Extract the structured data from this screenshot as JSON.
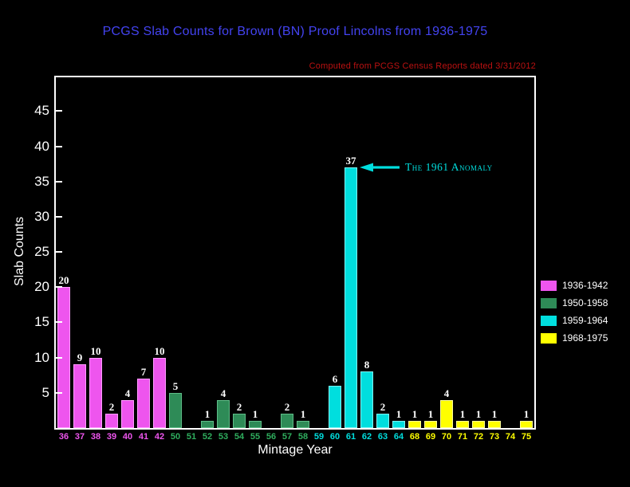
{
  "title": "PCGS Slab Counts for Brown (BN) Proof Lincolns from 1936-1975",
  "subtitle": "Computed from PCGS Census Reports dated 3/31/2012",
  "colors": {
    "background": "#000000",
    "title": "#4343f0",
    "subtitle": "#bb1111",
    "axis_text": "#ffffff",
    "annotation": "#00dede"
  },
  "chart_data": {
    "type": "bar",
    "title": "PCGS Slab Counts for Brown (BN) Proof Lincolns from 1936-1975",
    "xlabel": "Mintage Year",
    "ylabel": "Slab Counts",
    "ylim": [
      0,
      49.8
    ],
    "yticks": [
      5,
      10,
      15,
      20,
      25,
      30,
      35,
      40,
      45
    ],
    "grid": false,
    "legend_position": "right",
    "groups": [
      {
        "label": "1936-1942",
        "color": "#ee55ee",
        "border": "#ff9bff",
        "tick_color": "#ee55ee"
      },
      {
        "label": "1950-1958",
        "color": "#2e8b57",
        "border": "#5fbd88",
        "tick_color": "#2fae5e"
      },
      {
        "label": "1959-1964",
        "color": "#00dede",
        "border": "#7df4f4",
        "tick_color": "#00dede"
      },
      {
        "label": "1968-1975",
        "color": "#ffff00",
        "border": "#ffff9a",
        "tick_color": "#ffff00"
      }
    ],
    "bars": [
      {
        "year": "36",
        "value": 20,
        "group": 0
      },
      {
        "year": "37",
        "value": 9,
        "group": 0
      },
      {
        "year": "38",
        "value": 10,
        "group": 0
      },
      {
        "year": "39",
        "value": 2,
        "group": 0
      },
      {
        "year": "40",
        "value": 4,
        "group": 0
      },
      {
        "year": "41",
        "value": 7,
        "group": 0
      },
      {
        "year": "42",
        "value": 10,
        "group": 0
      },
      {
        "year": "50",
        "value": 5,
        "group": 1
      },
      {
        "year": "51",
        "value": 0,
        "group": 1
      },
      {
        "year": "52",
        "value": 1,
        "group": 1
      },
      {
        "year": "53",
        "value": 4,
        "group": 1
      },
      {
        "year": "54",
        "value": 2,
        "group": 1
      },
      {
        "year": "55",
        "value": 1,
        "group": 1
      },
      {
        "year": "56",
        "value": 0,
        "group": 1
      },
      {
        "year": "57",
        "value": 2,
        "group": 1
      },
      {
        "year": "58",
        "value": 1,
        "group": 1
      },
      {
        "year": "59",
        "value": 0,
        "group": 2
      },
      {
        "year": "60",
        "value": 6,
        "group": 2
      },
      {
        "year": "61",
        "value": 37,
        "group": 2
      },
      {
        "year": "62",
        "value": 8,
        "group": 2
      },
      {
        "year": "63",
        "value": 2,
        "group": 2
      },
      {
        "year": "64",
        "value": 1,
        "group": 2
      },
      {
        "year": "68",
        "value": 1,
        "group": 3
      },
      {
        "year": "69",
        "value": 1,
        "group": 3
      },
      {
        "year": "70",
        "value": 4,
        "group": 3
      },
      {
        "year": "71",
        "value": 1,
        "group": 3
      },
      {
        "year": "72",
        "value": 1,
        "group": 3
      },
      {
        "year": "73",
        "value": 1,
        "group": 3
      },
      {
        "year": "74",
        "value": 0,
        "group": 3
      },
      {
        "year": "75",
        "value": 1,
        "group": 3
      }
    ],
    "annotation": {
      "text": "The 1961 Anomaly",
      "target_year": "61",
      "target_value": 37
    }
  }
}
